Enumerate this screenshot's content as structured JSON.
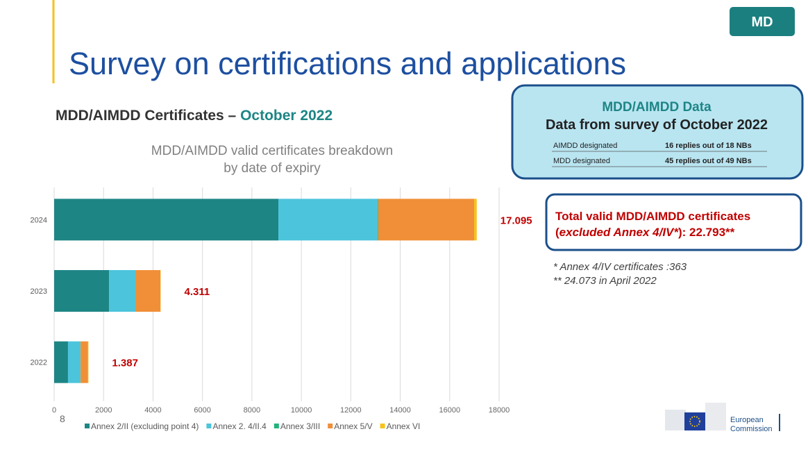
{
  "slide": {
    "badge": "MD",
    "title": "Survey on certifications and applications",
    "page_number": "8",
    "subtitle": [
      "MDD/AIMDD Certificates – ",
      "October 2022"
    ],
    "info_box": {
      "heading": "MDD/AIMDD Data",
      "subheading": "Data from survey of October 2022",
      "rows": [
        [
          "AIMDD designated",
          "16 replies out of 18 NBs"
        ],
        [
          "MDD designated",
          "45 replies out of 49 NBs"
        ]
      ]
    },
    "total_box": {
      "line1": "Total valid MDD/AIMDD certificates",
      "line2": [
        "(",
        "excluded Annex 4/IV*",
        "): 22.793**"
      ]
    },
    "footnotes": [
      "* Annex 4/IV certificates :363",
      "** 24.073 in April 2022"
    ],
    "logo": [
      "European",
      "Commission"
    ]
  },
  "chart_data": {
    "type": "stacked-barh",
    "title": [
      "MDD/AIMDD valid certificates breakdown",
      "by date of expiry"
    ],
    "categories": [
      "2024",
      "2023",
      "2022"
    ],
    "series": [
      {
        "name": "Annex 2/II (excluding point 4)",
        "color": "#1e8585",
        "values": [
          9070,
          2220,
          560
        ]
      },
      {
        "name": "Annex 2. 4/II.4",
        "color": "#4cc4dc",
        "values": [
          4010,
          1070,
          500
        ]
      },
      {
        "name": "Annex 3/III",
        "color": "#22b37c",
        "values": [
          30,
          10,
          10
        ]
      },
      {
        "name": "Annex 5/V",
        "color": "#f08f38",
        "values": [
          3880,
          1000,
          300
        ]
      },
      {
        "name": "Annex VI",
        "color": "#f6c31c",
        "values": [
          105,
          11,
          17
        ]
      }
    ],
    "totals": [
      17095,
      4311,
      1387
    ],
    "value_labels": [
      "17.095",
      "4.311",
      "1.387"
    ],
    "xlim": [
      0,
      18000
    ],
    "xticks": [
      0,
      2000,
      4000,
      6000,
      8000,
      10000,
      12000,
      14000,
      16000,
      18000
    ],
    "grid": true
  }
}
